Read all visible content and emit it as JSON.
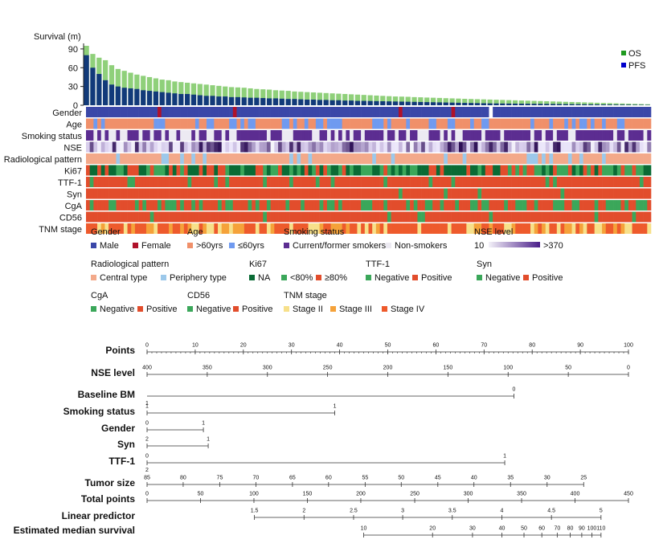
{
  "chart_data": [
    {
      "type": "bar",
      "ylabel": "Survival (m)",
      "ylim": [
        0,
        95
      ],
      "yticks": [
        0,
        30,
        60,
        90
      ],
      "series": [
        {
          "name": "OS",
          "color": "#1f9a1f",
          "values": [
            95,
            82,
            76,
            72,
            64,
            58,
            55,
            52,
            49,
            47,
            45,
            43,
            41,
            40,
            38,
            37,
            36,
            35,
            34,
            33,
            32,
            31,
            30,
            29,
            28.5,
            28,
            27,
            26,
            25.5,
            25,
            24,
            23.5,
            23,
            22,
            21.5,
            21,
            20.5,
            20,
            19.5,
            19,
            18.5,
            18,
            17.5,
            17,
            16.5,
            16,
            15.5,
            15,
            14.5,
            14,
            13.8,
            13.5,
            13,
            12.7,
            12.3,
            12,
            11.7,
            11.3,
            11,
            10.7,
            10.3,
            10,
            9.7,
            9.4,
            9.1,
            8.8,
            8.5,
            8.2,
            7.9,
            7.6,
            7.3,
            7,
            6.7,
            6.4,
            6.1,
            5.8,
            5.5,
            5.2,
            4.9,
            4.6,
            4.3,
            4,
            3.7,
            3.4,
            3.1,
            2.8,
            2.5,
            2.2,
            1.9,
            1.6
          ]
        },
        {
          "name": "PFS",
          "color": "#0000cc",
          "values": [
            80,
            60,
            50,
            40,
            33,
            30,
            28,
            27,
            26,
            24,
            23,
            22,
            21,
            20,
            19,
            18,
            18,
            17,
            16,
            15,
            15,
            14,
            14,
            13,
            13,
            12.5,
            12,
            12,
            11.5,
            11,
            11,
            10.5,
            10,
            10,
            9.5,
            9,
            9,
            8.5,
            8.5,
            8,
            8,
            7.5,
            7.5,
            7,
            7,
            6.8,
            6.6,
            6.4,
            6.2,
            6,
            5.8,
            5.6,
            5.4,
            5.2,
            5,
            4.8,
            4.6,
            4.4,
            4.2,
            4,
            3.8,
            3.6,
            3.4,
            3.2,
            3,
            2.9,
            2.8,
            2.7,
            2.6,
            2.5,
            2.4,
            2.3,
            2.2,
            2.1,
            2,
            1.9,
            1.8,
            1.7,
            1.6,
            1.5,
            1.4,
            1.3,
            1.2,
            1.1,
            1,
            0.9,
            0.8,
            0.7,
            0.6,
            0.5
          ]
        }
      ],
      "heatmap_rows": [
        "Gender",
        "Age",
        "Smoking status",
        "NSE",
        "Radiological pattern",
        "Ki67",
        "TTF-1",
        "Syn",
        "CgA",
        "CD56",
        "TNM stage"
      ],
      "legend_groups": [
        {
          "title": "Gender",
          "items": [
            {
              "label": "Male",
              "color": "#3a47a8"
            },
            {
              "label": "Female",
              "color": "#b0122a"
            }
          ]
        },
        {
          "title": "Age",
          "items": [
            {
              "label": ">60yrs",
              "color": "#f0906a"
            },
            {
              "label": "≤60yrs",
              "color": "#6f9af0"
            }
          ]
        },
        {
          "title": "Smoking status",
          "items": [
            {
              "label": "Current/former smokers",
              "color": "#5c2d91"
            },
            {
              "label": "Non-smokers",
              "color": "#eceaf2"
            }
          ]
        },
        {
          "title": "NSE level",
          "gradient": [
            "#f3f1f8",
            "#4b1f8a"
          ],
          "low": "10",
          "high": ">370"
        },
        {
          "title": "Radiological pattern",
          "items": [
            {
              "label": "Central type",
              "color": "#f3a98a"
            },
            {
              "label": "Periphery type",
              "color": "#9cc8ea"
            }
          ]
        },
        {
          "title": "Ki67",
          "items": [
            {
              "label": "NA",
              "color": "#0a6b35"
            },
            {
              "label": "<80%",
              "color": "#3ba75a"
            },
            {
              "label": "≥80%",
              "color": "#e24d2c"
            }
          ]
        },
        {
          "title": "TTF-1",
          "items": [
            {
              "label": "Negative",
              "color": "#3ba75a"
            },
            {
              "label": "Positive",
              "color": "#e24d2c"
            }
          ]
        },
        {
          "title": "Syn",
          "items": [
            {
              "label": "Negative",
              "color": "#3ba75a"
            },
            {
              "label": "Positive",
              "color": "#e24d2c"
            }
          ]
        },
        {
          "title": "CgA",
          "items": [
            {
              "label": "Negative",
              "color": "#3ba75a"
            },
            {
              "label": "Positive",
              "color": "#e24d2c"
            }
          ]
        },
        {
          "title": "CD56",
          "items": [
            {
              "label": "Negative",
              "color": "#3ba75a"
            },
            {
              "label": "Positive",
              "color": "#e24d2c"
            }
          ]
        },
        {
          "title": "TNM stage",
          "items": [
            {
              "label": "Stage II",
              "color": "#f7e08a"
            },
            {
              "label": "Stage III",
              "color": "#f5a23a"
            },
            {
              "label": "Stage IV",
              "color": "#ee5a2c"
            }
          ]
        }
      ]
    },
    {
      "type": "nomogram",
      "rows": [
        {
          "label": "Points",
          "min": 0,
          "max": 100,
          "ticks": [
            {
              "v": 0,
              "t": "0"
            },
            {
              "v": 10,
              "t": "10"
            },
            {
              "v": 20,
              "t": "20"
            },
            {
              "v": 30,
              "t": "30"
            },
            {
              "v": 40,
              "t": "40"
            },
            {
              "v": 50,
              "t": "50"
            },
            {
              "v": 60,
              "t": "60"
            },
            {
              "v": 70,
              "t": "70"
            },
            {
              "v": 80,
              "t": "80"
            },
            {
              "v": 90,
              "t": "90"
            },
            {
              "v": 100,
              "t": "100"
            }
          ],
          "minor": 1
        },
        {
          "label": "NSE level",
          "min": 0,
          "max": 100,
          "ticks": [
            {
              "v": 0,
              "t": "400"
            },
            {
              "v": 12.5,
              "t": "350"
            },
            {
              "v": 25,
              "t": "300"
            },
            {
              "v": 37.5,
              "t": "250"
            },
            {
              "v": 50,
              "t": "200"
            },
            {
              "v": 62.5,
              "t": "150"
            },
            {
              "v": 75,
              "t": "100"
            },
            {
              "v": 87.5,
              "t": "50"
            },
            {
              "v": 100,
              "t": "0"
            }
          ]
        },
        {
          "label": "Baseline BM",
          "min": 0,
          "max": 76.2,
          "ticks": [
            {
              "v": 76.2,
              "t": "0"
            }
          ],
          "sub": [
            {
              "v": 0,
              "t": "1"
            }
          ]
        },
        {
          "label": "Smoking status",
          "min": 0,
          "max": 39,
          "ticks": [
            {
              "v": 0,
              "t": "1"
            },
            {
              "v": 39,
              "t": "1"
            }
          ]
        },
        {
          "label": "Gender",
          "min": 0,
          "max": 11.7,
          "ticks": [
            {
              "v": 0,
              "t": "0"
            },
            {
              "v": 11.7,
              "t": "1"
            }
          ]
        },
        {
          "label": "Syn",
          "min": 0,
          "max": 12.7,
          "ticks": [
            {
              "v": 0,
              "t": "2"
            },
            {
              "v": 12.7,
              "t": "1"
            }
          ]
        },
        {
          "label": "TTF-1",
          "min": 0,
          "max": 74.3,
          "ticks": [
            {
              "v": 0,
              "t": "0"
            },
            {
              "v": 74.3,
              "t": "1"
            }
          ],
          "sub": [
            {
              "v": 0,
              "t": "2"
            }
          ]
        },
        {
          "label": "Tumor size",
          "min": 0,
          "max": 90.7,
          "ticks": [
            {
              "v": 0,
              "t": "85"
            },
            {
              "v": 7.5,
              "t": "80"
            },
            {
              "v": 15.1,
              "t": "75"
            },
            {
              "v": 22.6,
              "t": "70"
            },
            {
              "v": 30.2,
              "t": "65"
            },
            {
              "v": 37.7,
              "t": "60"
            },
            {
              "v": 45.3,
              "t": "55"
            },
            {
              "v": 52.8,
              "t": "50"
            },
            {
              "v": 60.4,
              "t": "45"
            },
            {
              "v": 67.9,
              "t": "40"
            },
            {
              "v": 75.5,
              "t": "35"
            },
            {
              "v": 83.1,
              "t": "30"
            },
            {
              "v": 90.7,
              "t": "25"
            }
          ]
        },
        {
          "label": "Total points",
          "min": 0,
          "max": 100,
          "ticks": [
            {
              "v": 0,
              "t": "0"
            },
            {
              "v": 11.1,
              "t": "50"
            },
            {
              "v": 22.2,
              "t": "100"
            },
            {
              "v": 33.3,
              "t": "150"
            },
            {
              "v": 44.4,
              "t": "200"
            },
            {
              "v": 55.6,
              "t": "250"
            },
            {
              "v": 66.7,
              "t": "300"
            },
            {
              "v": 77.8,
              "t": "350"
            },
            {
              "v": 88.9,
              "t": "400"
            },
            {
              "v": 100,
              "t": "450"
            }
          ]
        },
        {
          "label": "Linear predictor",
          "min": 22.3,
          "max": 94.3,
          "ticks": [
            {
              "v": 22.3,
              "t": "1.5"
            },
            {
              "v": 32.6,
              "t": "2"
            },
            {
              "v": 42.9,
              "t": "2.5"
            },
            {
              "v": 53.1,
              "t": "3"
            },
            {
              "v": 63.4,
              "t": "3.5"
            },
            {
              "v": 73.7,
              "t": "4"
            },
            {
              "v": 84,
              "t": "4.5"
            },
            {
              "v": 94.3,
              "t": "5"
            }
          ]
        },
        {
          "label": "Estimated median survival",
          "min": 45,
          "max": 94.3,
          "ticks": [
            {
              "v": 45,
              "t": "10"
            },
            {
              "v": 59.3,
              "t": "20"
            },
            {
              "v": 67.6,
              "t": "30"
            },
            {
              "v": 73.7,
              "t": "40"
            },
            {
              "v": 78.3,
              "t": "50"
            },
            {
              "v": 82,
              "t": "60"
            },
            {
              "v": 85.2,
              "t": "70"
            },
            {
              "v": 87.9,
              "t": "80"
            },
            {
              "v": 90.3,
              "t": "90"
            },
            {
              "v": 92.4,
              "t": "100"
            },
            {
              "v": 94.3,
              "t": "110"
            }
          ]
        }
      ]
    }
  ]
}
